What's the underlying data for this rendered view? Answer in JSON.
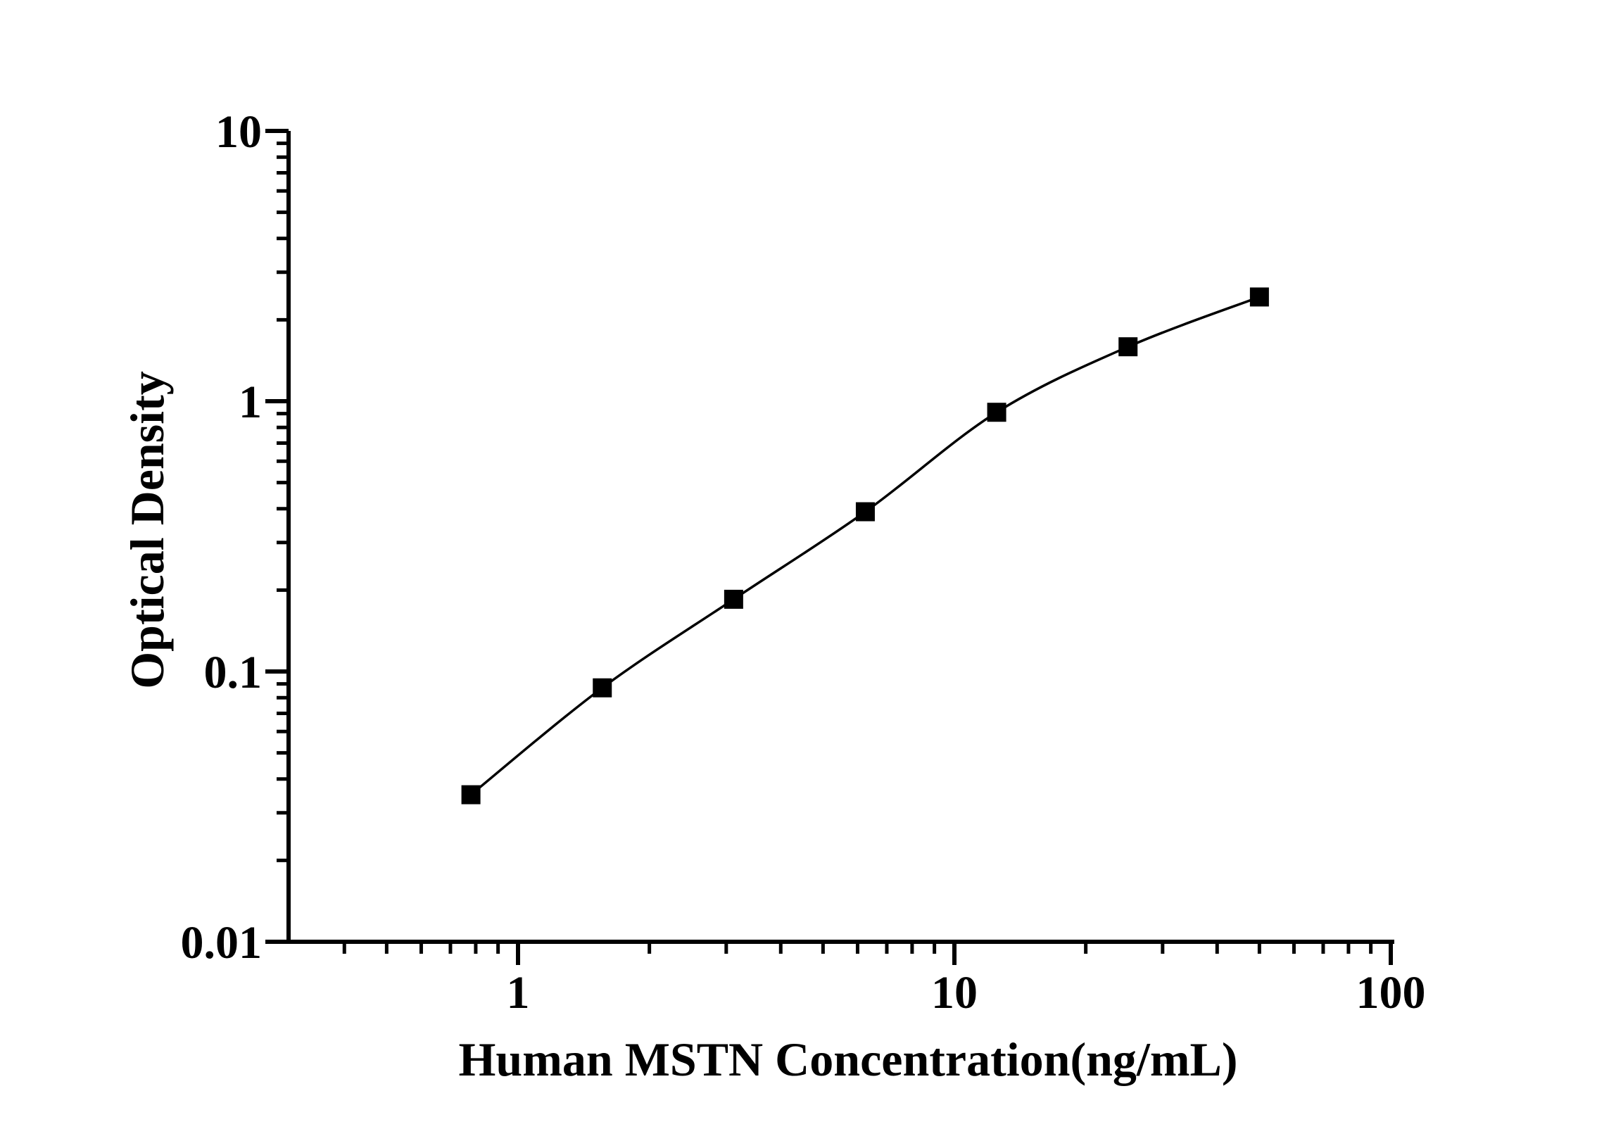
{
  "figure": {
    "background": "#ffffff",
    "ink_color": "#000000"
  },
  "chart_data": {
    "type": "line",
    "title": "",
    "xlabel": "Human MSTN Concentration(ng/mL)",
    "ylabel": "Optical Density",
    "x_scale": "log",
    "y_scale": "log",
    "xlim": [
      0.3,
      100
    ],
    "ylim": [
      0.01,
      10
    ],
    "grid": false,
    "legend_position": "none",
    "marker": "filled-square",
    "marker_size": 27,
    "line_color": "#000000",
    "marker_color": "#000000",
    "x": [
      0.78,
      1.56,
      3.12,
      6.25,
      12.5,
      25,
      50
    ],
    "y": [
      0.035,
      0.087,
      0.185,
      0.39,
      0.91,
      1.59,
      2.43
    ],
    "x_major_ticks": [
      {
        "value": 1,
        "label": "1"
      },
      {
        "value": 10,
        "label": "10"
      },
      {
        "value": 100,
        "label": "100"
      }
    ],
    "y_major_ticks": [
      {
        "value": 0.01,
        "label": "0.01"
      },
      {
        "value": 0.1,
        "label": "0.1"
      },
      {
        "value": 1,
        "label": "1"
      },
      {
        "value": 10,
        "label": "10"
      }
    ]
  }
}
